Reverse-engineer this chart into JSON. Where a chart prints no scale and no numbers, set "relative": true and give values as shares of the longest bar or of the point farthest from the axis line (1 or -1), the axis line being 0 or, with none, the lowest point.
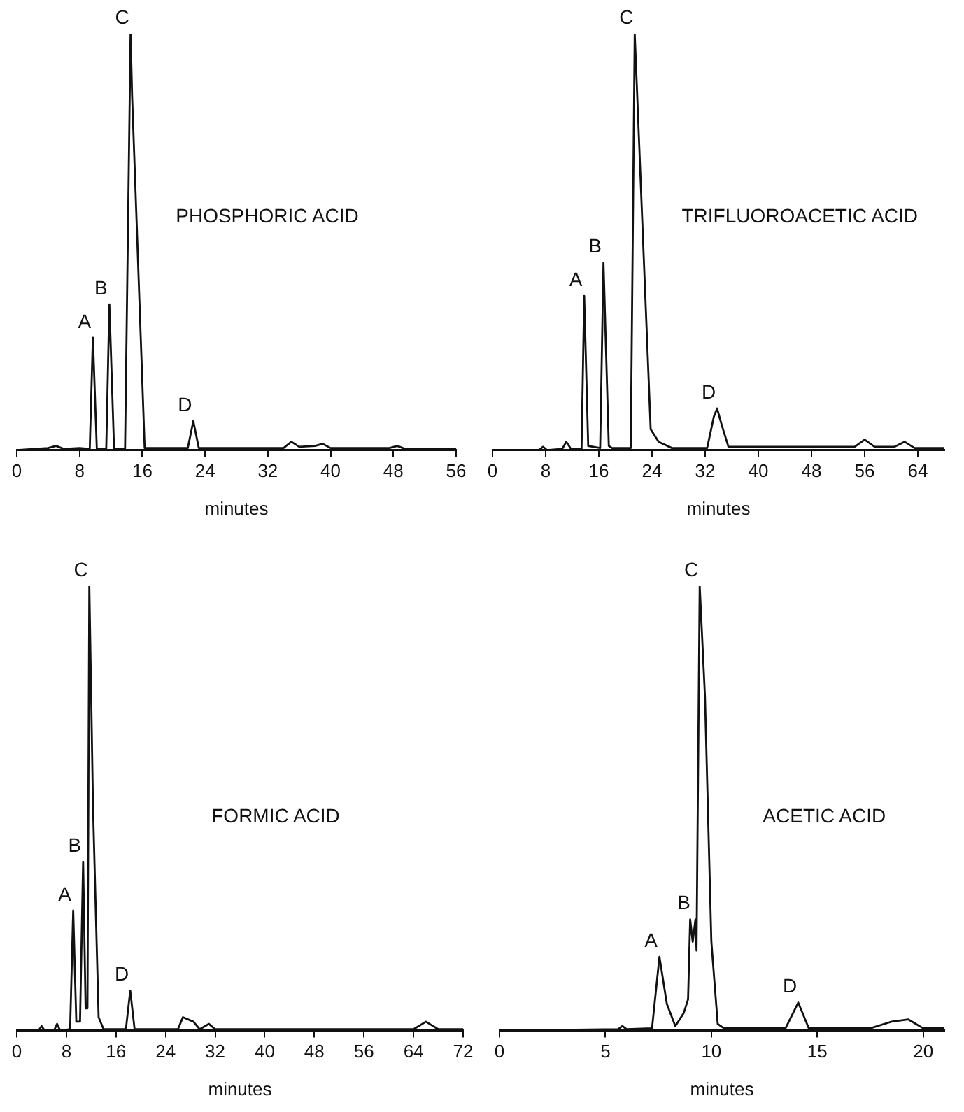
{
  "chart_data": [
    {
      "type": "line",
      "title": "PHOSPHORIC ACID",
      "xlabel": "minutes",
      "relative": true,
      "xlim": [
        0,
        56
      ],
      "xticks": [
        0,
        8,
        16,
        24,
        32,
        40,
        48,
        56
      ],
      "tick_labels": "x",
      "grid": false,
      "legend": false,
      "marker": "none",
      "series": [
        {
          "color": "#111111",
          "x": [
            0,
            4,
            5,
            6,
            8,
            9.3,
            9.7,
            10.2,
            11.4,
            11.8,
            12.4,
            13.8,
            14.5,
            14.7,
            16.3,
            21.8,
            22.5,
            23.2,
            34,
            35,
            36,
            38,
            39,
            40,
            47.5,
            48.5,
            49.5,
            56
          ],
          "values": [
            0,
            0.005,
            0.01,
            0.003,
            0.005,
            0.003,
            0.27,
            0.003,
            0.003,
            0.35,
            0.003,
            0.003,
            1,
            0.85,
            0.005,
            0.005,
            0.07,
            0.005,
            0.005,
            0.02,
            0.008,
            0.01,
            0.015,
            0.005,
            0.005,
            0.01,
            0.003,
            0.003
          ]
        }
      ],
      "annotations": [
        {
          "text": "A",
          "x": 9.7,
          "y": 0.27
        },
        {
          "text": "B",
          "x": 11.8,
          "y": 0.35
        },
        {
          "text": "C",
          "x": 14.5,
          "y": 1
        },
        {
          "text": "D",
          "x": 22.5,
          "y": 0.07
        }
      ]
    },
    {
      "type": "line",
      "title": "TRIFLUOROACETIC ACID",
      "xlabel": "minutes",
      "relative": true,
      "xlim": [
        0,
        68
      ],
      "xticks": [
        0,
        8,
        16,
        24,
        32,
        40,
        48,
        56,
        64
      ],
      "tick_labels": "x",
      "grid": false,
      "legend": false,
      "marker": "none",
      "series": [
        {
          "color": "#111111",
          "x": [
            0,
            7,
            7.6,
            8.2,
            10.5,
            11.1,
            11.8,
            13.4,
            13.8,
            14.4,
            16.2,
            16.7,
            17.5,
            18,
            20.8,
            21.4,
            23.8,
            25,
            27,
            32.3,
            33.3,
            33.8,
            34.5,
            35.5,
            54.5,
            56,
            57.5,
            60.5,
            62,
            63.5,
            68
          ],
          "values": [
            0,
            0,
            0.008,
            0,
            0.003,
            0.02,
            0.003,
            0.003,
            0.37,
            0.01,
            0.005,
            0.45,
            0.01,
            0.005,
            0.005,
            1,
            0.05,
            0.02,
            0.005,
            0.005,
            0.08,
            0.1,
            0.06,
            0.008,
            0.008,
            0.025,
            0.008,
            0.008,
            0.02,
            0.005,
            0.005
          ]
        }
      ],
      "annotations": [
        {
          "text": "A",
          "x": 13.8,
          "y": 0.37
        },
        {
          "text": "B",
          "x": 16.7,
          "y": 0.45
        },
        {
          "text": "C",
          "x": 21.4,
          "y": 1
        },
        {
          "text": "D",
          "x": 33.8,
          "y": 0.1
        }
      ]
    },
    {
      "type": "line",
      "title": "FORMIC ACID",
      "xlabel": "minutes",
      "relative": true,
      "xlim": [
        0,
        72
      ],
      "xticks": [
        0,
        8,
        16,
        24,
        32,
        40,
        48,
        56,
        64,
        72
      ],
      "tick_labels": "x",
      "grid": false,
      "legend": false,
      "marker": "none",
      "series": [
        {
          "color": "#111111",
          "x": [
            0,
            3.5,
            4,
            4.5,
            6,
            6.5,
            7,
            8.6,
            9.1,
            9.6,
            10.2,
            10.7,
            11.1,
            11.4,
            11.7,
            12.3,
            13.2,
            14,
            17.6,
            18.3,
            19,
            26,
            26.8,
            28.5,
            29.5,
            31,
            32,
            64,
            66,
            68,
            72
          ],
          "values": [
            0,
            0,
            0.01,
            0,
            0,
            0.015,
            0,
            0.003,
            0.27,
            0.02,
            0.02,
            0.38,
            0.05,
            0.05,
            1,
            0.5,
            0.03,
            0.003,
            0.003,
            0.09,
            0.003,
            0.003,
            0.03,
            0.02,
            0.003,
            0.015,
            0.003,
            0.003,
            0.02,
            0.003,
            0.003
          ]
        }
      ],
      "annotations": [
        {
          "text": "A",
          "x": 9.1,
          "y": 0.27
        },
        {
          "text": "B",
          "x": 10.7,
          "y": 0.38
        },
        {
          "text": "C",
          "x": 11.7,
          "y": 1
        },
        {
          "text": "D",
          "x": 18.3,
          "y": 0.09
        }
      ]
    },
    {
      "type": "line",
      "title": "ACETIC ACID",
      "xlabel": "minutes",
      "relative": true,
      "xlim": [
        0,
        21
      ],
      "xticks": [
        0,
        5,
        10,
        15,
        20
      ],
      "tick_labels": "x",
      "grid": false,
      "legend": false,
      "marker": "none",
      "series": [
        {
          "color": "#111111",
          "x": [
            0,
            5.6,
            5.8,
            6,
            7.2,
            7.55,
            7.9,
            8.3,
            8.7,
            8.9,
            9,
            9.12,
            9.25,
            9.3,
            9.45,
            9.7,
            10,
            10.3,
            10.6,
            13.5,
            14.1,
            14.6,
            17.5,
            18.5,
            19.3,
            20,
            21
          ],
          "values": [
            0,
            0.003,
            0.01,
            0.003,
            0.005,
            0.166,
            0.06,
            0.01,
            0.04,
            0.07,
            0.25,
            0.2,
            0.25,
            0.18,
            1,
            0.75,
            0.2,
            0.015,
            0.005,
            0.005,
            0.063,
            0.005,
            0.005,
            0.02,
            0.025,
            0.005,
            0.005
          ]
        }
      ],
      "annotations": [
        {
          "text": "A",
          "x": 7.55,
          "y": 0.166
        },
        {
          "text": "B",
          "x": 9.1,
          "y": 0.25
        },
        {
          "text": "C",
          "x": 9.45,
          "y": 1
        },
        {
          "text": "D",
          "x": 14.1,
          "y": 0.063
        }
      ]
    }
  ]
}
